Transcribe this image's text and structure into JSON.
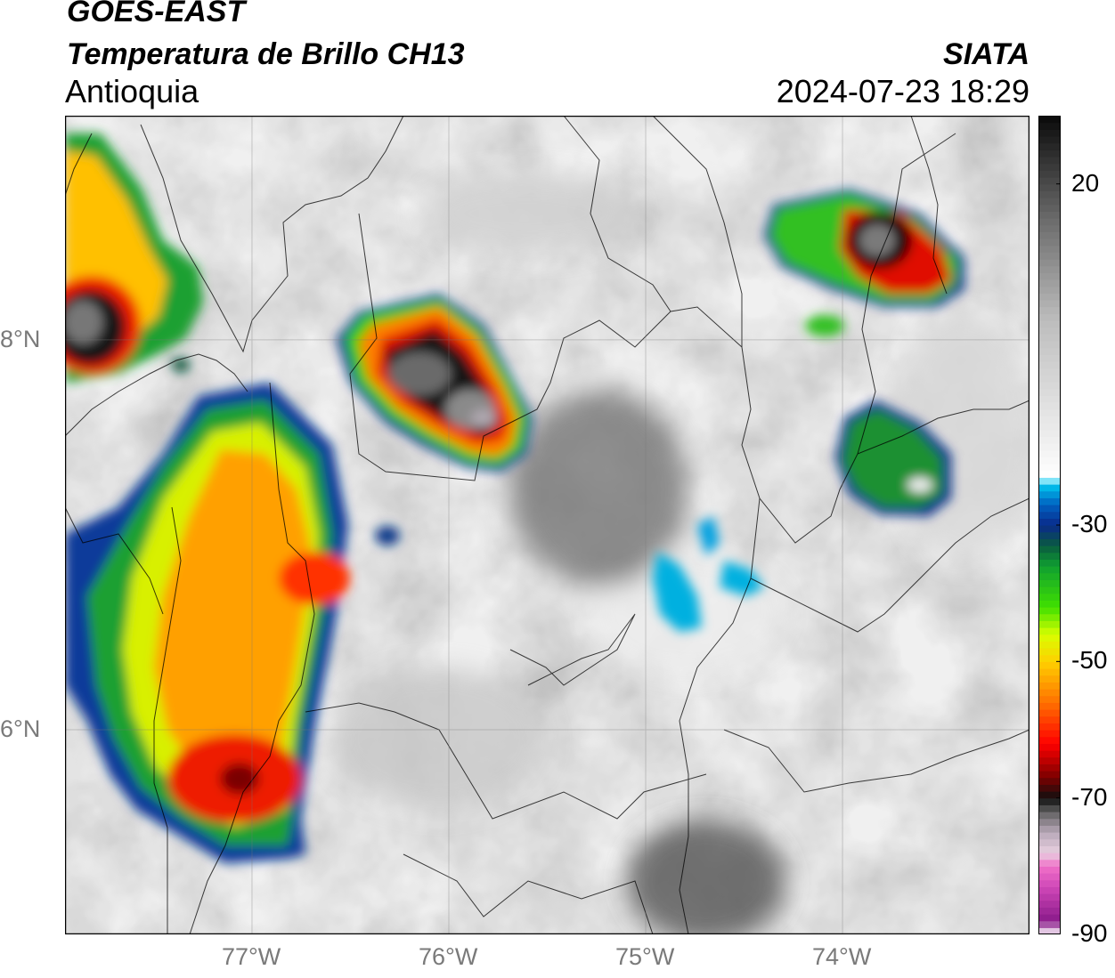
{
  "header": {
    "satellite": "GOES-EAST",
    "product": "Temperatura de Brillo CH13",
    "region": "Antioquia",
    "agency": "SIATA",
    "datetime": "2024-07-23 18:29"
  },
  "map": {
    "lon_range": [
      -77.95,
      -73.05
    ],
    "lat_range": [
      4.95,
      9.15
    ],
    "lon_ticks": [
      {
        "value": -77,
        "label": "77°W"
      },
      {
        "value": -76,
        "label": "76°W"
      },
      {
        "value": -75,
        "label": "75°W"
      },
      {
        "value": -74,
        "label": "74°W"
      }
    ],
    "lat_ticks": [
      {
        "value": 8,
        "label": "8°N"
      },
      {
        "value": 6,
        "label": "6°N"
      }
    ],
    "grid": true,
    "background": "grayscale infrared"
  },
  "colorbar": {
    "range": [
      -90,
      30
    ],
    "tick_labels": [
      {
        "value": 20,
        "label": "20"
      },
      {
        "value": -30,
        "label": "-30"
      },
      {
        "value": -50,
        "label": "-50"
      },
      {
        "value": -70,
        "label": "-70"
      },
      {
        "value": -90,
        "label": "-90"
      }
    ],
    "stops": [
      {
        "t": -90,
        "color": "#ffffff"
      },
      {
        "t": -88,
        "color": "#8a1a8a"
      },
      {
        "t": -83,
        "color": "#d048b8"
      },
      {
        "t": -80,
        "color": "#f070c8"
      },
      {
        "t": -78,
        "color": "#e8d0e0"
      },
      {
        "t": -75,
        "color": "#b8a8b8"
      },
      {
        "t": -72,
        "color": "#606060"
      },
      {
        "t": -70,
        "color": "#101010"
      },
      {
        "t": -67,
        "color": "#7a0000"
      },
      {
        "t": -62,
        "color": "#ff0000"
      },
      {
        "t": -56,
        "color": "#ff7000"
      },
      {
        "t": -50,
        "color": "#ffd000"
      },
      {
        "t": -46,
        "color": "#d8ff00"
      },
      {
        "t": -42,
        "color": "#40e000"
      },
      {
        "t": -36,
        "color": "#10a030"
      },
      {
        "t": -33,
        "color": "#0a5a40"
      },
      {
        "t": -30,
        "color": "#0a2a8a"
      },
      {
        "t": -27,
        "color": "#0060c0"
      },
      {
        "t": -24,
        "color": "#00c8f0"
      },
      {
        "t": -23,
        "color": "#ffffff"
      },
      {
        "t": 0,
        "color": "#bdbdbd"
      },
      {
        "t": 15,
        "color": "#6a6a6a"
      },
      {
        "t": 30,
        "color": "#0a0a0a"
      }
    ]
  }
}
